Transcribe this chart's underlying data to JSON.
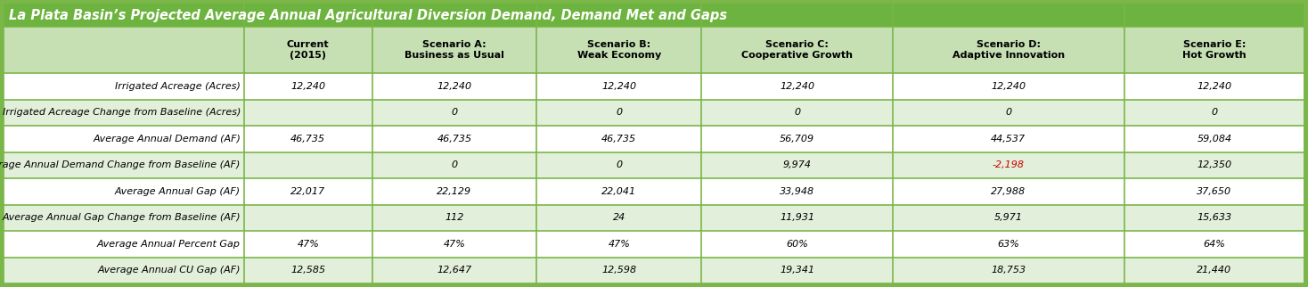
{
  "title": "La Plata Basin’s Projected Average Annual Agricultural Diversion Demand, Demand Met and Gaps",
  "title_bg_color": "#6db33f",
  "title_text_color": "#ffffff",
  "header_bg_color": "#c6e0b4",
  "header_text_color": "#000000",
  "row_bg_odd": "#ffffff",
  "row_bg_even": "#e2efda",
  "border_color": "#7ab648",
  "columns": [
    "Current\n(2015)",
    "Scenario A:\nBusiness as Usual",
    "Scenario B:\nWeak Economy",
    "Scenario C:\nCooperative Growth",
    "Scenario D:\nAdaptive Innovation",
    "Scenario E:\nHot Growth"
  ],
  "rows": [
    {
      "label": "Irrigated Acreage (Acres)",
      "values": [
        "12,240",
        "12,240",
        "12,240",
        "12,240",
        "12,240",
        "12,240"
      ],
      "value_colors": [
        "#000000",
        "#000000",
        "#000000",
        "#000000",
        "#000000",
        "#000000"
      ]
    },
    {
      "label": "Irrigated Acreage Change from Baseline (Acres)",
      "values": [
        "",
        "0",
        "0",
        "0",
        "0",
        "0"
      ],
      "value_colors": [
        "#000000",
        "#000000",
        "#000000",
        "#000000",
        "#000000",
        "#000000"
      ]
    },
    {
      "label": "Average Annual Demand (AF)",
      "values": [
        "46,735",
        "46,735",
        "46,735",
        "56,709",
        "44,537",
        "59,084"
      ],
      "value_colors": [
        "#000000",
        "#000000",
        "#000000",
        "#000000",
        "#000000",
        "#000000"
      ]
    },
    {
      "label": "Average Annual Demand Change from Baseline (AF)",
      "values": [
        "",
        "0",
        "0",
        "9,974",
        "-2,198",
        "12,350"
      ],
      "value_colors": [
        "#000000",
        "#000000",
        "#000000",
        "#000000",
        "#cc0000",
        "#000000"
      ]
    },
    {
      "label": "Average Annual Gap (AF)",
      "values": [
        "22,017",
        "22,129",
        "22,041",
        "33,948",
        "27,988",
        "37,650"
      ],
      "value_colors": [
        "#000000",
        "#000000",
        "#000000",
        "#000000",
        "#000000",
        "#000000"
      ]
    },
    {
      "label": "Average Annual Gap Change from Baseline (AF)",
      "values": [
        "",
        "112",
        "24",
        "11,931",
        "5,971",
        "15,633"
      ],
      "value_colors": [
        "#000000",
        "#000000",
        "#000000",
        "#000000",
        "#000000",
        "#000000"
      ]
    },
    {
      "label": "Average Annual Percent Gap",
      "values": [
        "47%",
        "47%",
        "47%",
        "60%",
        "63%",
        "64%"
      ],
      "value_colors": [
        "#000000",
        "#000000",
        "#000000",
        "#000000",
        "#000000",
        "#000000"
      ]
    },
    {
      "label": "Average Annual CU Gap (AF)",
      "values": [
        "12,585",
        "12,647",
        "12,598",
        "19,341",
        "18,753",
        "21,440"
      ],
      "value_colors": [
        "#000000",
        "#000000",
        "#000000",
        "#000000",
        "#000000",
        "#000000"
      ]
    }
  ],
  "figsize": [
    14.68,
    3.22
  ],
  "dpi": 100,
  "title_fontsize": 10.5,
  "header_fontsize": 8.0,
  "data_fontsize": 8.0,
  "label_fontsize": 8.0
}
